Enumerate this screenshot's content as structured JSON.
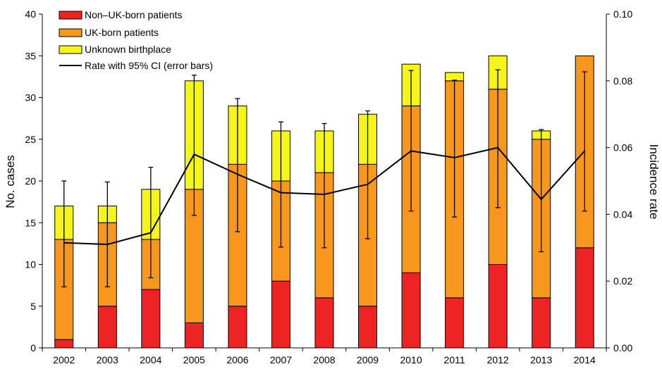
{
  "chart_data": {
    "type": "bar",
    "stacked": true,
    "categories": [
      "2002",
      "2003",
      "2004",
      "2005",
      "2006",
      "2007",
      "2008",
      "2009",
      "2010",
      "2011",
      "2012",
      "2013",
      "2014"
    ],
    "series": [
      {
        "name": "Non–UK-born patients",
        "color": "#ee2424",
        "values": [
          1,
          5,
          7,
          3,
          5,
          8,
          6,
          5,
          9,
          6,
          10,
          6,
          12
        ]
      },
      {
        "name": "UK-born patients",
        "color": "#f7971e",
        "values": [
          12,
          10,
          6,
          16,
          17,
          12,
          15,
          17,
          20,
          26,
          21,
          19,
          23
        ]
      },
      {
        "name": "Unknown birthplace",
        "color": "#f5f51b",
        "values": [
          4,
          2,
          6,
          13,
          7,
          6,
          5,
          6,
          5,
          1,
          4,
          1,
          0
        ]
      }
    ],
    "line_series": {
      "name": "Rate with 95% CI (error bars)",
      "color": "#000000",
      "axis": "right",
      "values": [
        0.0315,
        0.031,
        0.0345,
        0.058,
        0.052,
        0.0465,
        0.046,
        0.049,
        0.059,
        0.057,
        0.06,
        0.0445,
        0.059
      ],
      "ci_lower": [
        0.0183,
        0.0183,
        0.021,
        0.0397,
        0.0348,
        0.0302,
        0.03,
        0.0327,
        0.041,
        0.0392,
        0.042,
        0.0288,
        0.041
      ],
      "ci_upper": [
        0.05,
        0.0497,
        0.0541,
        0.0817,
        0.0747,
        0.0677,
        0.0672,
        0.071,
        0.0831,
        0.0802,
        0.0833,
        0.0654,
        0.0827
      ]
    },
    "ylabel": "No. cases",
    "y2label": "Incidence rate",
    "ylim": [
      0,
      40
    ],
    "y2lim": [
      0,
      0.1
    ],
    "yticks": [
      0,
      5,
      10,
      15,
      20,
      25,
      30,
      35,
      40
    ],
    "y2ticks": [
      "0.00",
      "0.02",
      "0.04",
      "0.06",
      "0.08",
      "0.10"
    ],
    "legend_position": "top-left",
    "grid": false
  }
}
